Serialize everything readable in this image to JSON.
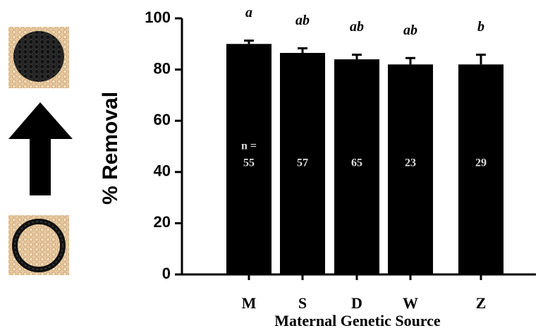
{
  "chart_data": {
    "type": "bar",
    "x_label": "Maternal Genetic Source",
    "y_label": "% Removal",
    "categories": [
      "M",
      "S",
      "D",
      "W",
      "Z"
    ],
    "values": [
      90,
      86.5,
      84,
      82,
      82
    ],
    "errors": [
      1.3,
      1.8,
      1.8,
      2.5,
      3.8
    ],
    "letters": [
      "a",
      "ab",
      "ab",
      "ab",
      "b"
    ],
    "n_label": "n =",
    "n": [
      55,
      57,
      65,
      23,
      29
    ],
    "color": "#000000",
    "ylim": [
      0,
      100
    ],
    "yticks": [
      0,
      20,
      40,
      60,
      80,
      100
    ]
  }
}
